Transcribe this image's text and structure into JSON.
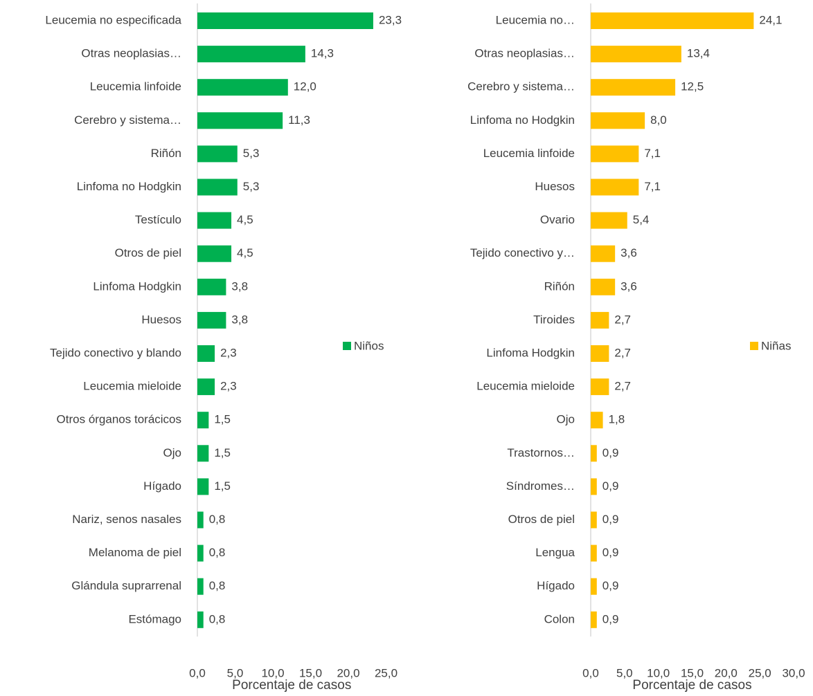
{
  "chart_data": [
    {
      "type": "bar",
      "orientation": "horizontal",
      "x_label": "Porcentaje de casos",
      "categories": [
        "Leucemia no especificada",
        "Otras neoplasias…",
        "Leucemia linfoide",
        "Cerebro y sistema…",
        "Riñón",
        "Linfoma no Hodgkin",
        "Testículo",
        "Otros de piel",
        "Linfoma Hodgkin",
        "Huesos",
        "Tejido conectivo y blando",
        "Leucemia mieloide",
        "Otros órganos torácicos",
        "Ojo",
        "Hígado",
        "Nariz, senos nasales",
        "Melanoma de piel",
        "Glándula suprarrenal",
        "Estómago"
      ],
      "series": [
        {
          "name": "Niños",
          "color": "#00b050",
          "values": [
            23.3,
            14.3,
            12.0,
            11.3,
            5.3,
            5.3,
            4.5,
            4.5,
            3.8,
            3.8,
            2.3,
            2.3,
            1.5,
            1.5,
            1.5,
            0.8,
            0.8,
            0.8,
            0.8
          ],
          "value_labels": [
            "23,3",
            "14,3",
            "12,0",
            "11,3",
            "5,3",
            "5,3",
            "4,5",
            "4,5",
            "3,8",
            "3,8",
            "2,3",
            "2,3",
            "1,5",
            "1,5",
            "1,5",
            "0,8",
            "0,8",
            "0,8",
            "0,8"
          ]
        }
      ],
      "xlim": [
        0,
        25
      ],
      "xticks": [
        {
          "value": 0,
          "label": "0,0"
        },
        {
          "value": 5,
          "label": "5,0"
        },
        {
          "value": 10,
          "label": "10,0"
        },
        {
          "value": 15,
          "label": "15,0"
        },
        {
          "value": 20,
          "label": "20,0"
        },
        {
          "value": 25,
          "label": "25,0"
        }
      ],
      "legend": "right"
    },
    {
      "type": "bar",
      "orientation": "horizontal",
      "x_label": "Porcentaje de casos",
      "categories": [
        "Leucemia no…",
        "Otras neoplasias…",
        "Cerebro y sistema…",
        "Linfoma no Hodgkin",
        "Leucemia linfoide",
        "Huesos",
        "Ovario",
        "Tejido conectivo y…",
        "Riñón",
        "Tiroides",
        "Linfoma Hodgkin",
        "Leucemia mieloide",
        "Ojo",
        "Trastornos…",
        "Síndromes…",
        "Otros de piel",
        "Lengua",
        "Hígado",
        "Colon"
      ],
      "series": [
        {
          "name": "Niñas",
          "color": "#ffc000",
          "values": [
            24.1,
            13.4,
            12.5,
            8.0,
            7.1,
            7.1,
            5.4,
            3.6,
            3.6,
            2.7,
            2.7,
            2.7,
            1.8,
            0.9,
            0.9,
            0.9,
            0.9,
            0.9,
            0.9
          ],
          "value_labels": [
            "24,1",
            "13,4",
            "12,5",
            "8,0",
            "7,1",
            "7,1",
            "5,4",
            "3,6",
            "3,6",
            "2,7",
            "2,7",
            "2,7",
            "1,8",
            "0,9",
            "0,9",
            "0,9",
            "0,9",
            "0,9",
            "0,9"
          ]
        }
      ],
      "xlim": [
        0,
        30
      ],
      "xticks": [
        {
          "value": 0,
          "label": "0,0"
        },
        {
          "value": 5,
          "label": "5,0"
        },
        {
          "value": 10,
          "label": "10,0"
        },
        {
          "value": 15,
          "label": "15,0"
        },
        {
          "value": 20,
          "label": "20,0"
        },
        {
          "value": 25,
          "label": "25,0"
        },
        {
          "value": 30,
          "label": "30,0"
        }
      ],
      "legend": "right"
    }
  ]
}
